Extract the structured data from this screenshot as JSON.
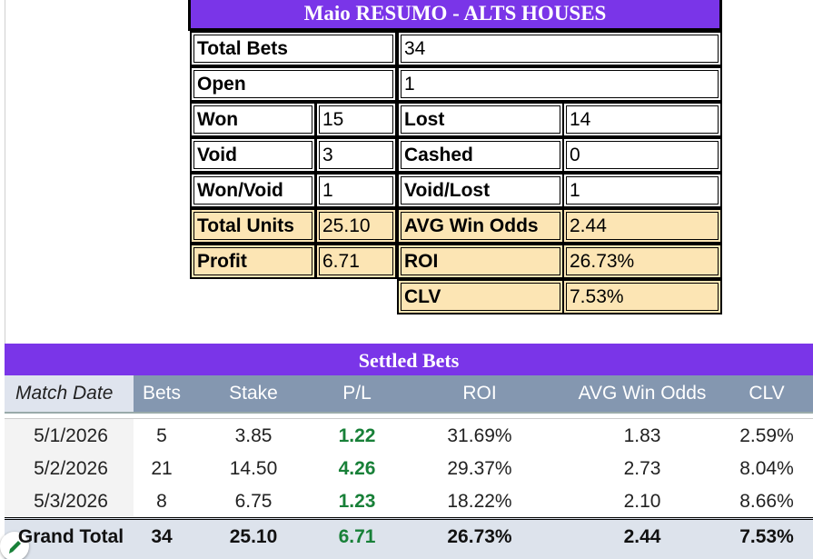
{
  "summary": {
    "title": "Maio RESUMO - ALTS HOUSES",
    "rows": [
      [
        "Total Bets",
        "34"
      ],
      [
        "Open",
        "1"
      ],
      [
        "Won",
        "15",
        "Lost",
        "14"
      ],
      [
        "Void",
        "3",
        "Cashed",
        "0"
      ],
      [
        "Won/Void",
        "1",
        "Void/Lost",
        "1"
      ],
      [
        "Total Units",
        "25.10",
        "AVG Win Odds",
        "2.44"
      ],
      [
        "Profit",
        "6.71",
        "ROI",
        "26.73%"
      ],
      [
        "CLV",
        "7.53%"
      ]
    ]
  },
  "settled": {
    "title": "Settled Bets",
    "headers": [
      "Match Date",
      "Bets",
      "Stake",
      "P/L",
      "ROI",
      "AVG Win Odds",
      "CLV"
    ],
    "rows": [
      [
        "5/1/2026",
        "5",
        "3.85",
        "1.22",
        "31.69%",
        "1.83",
        "2.59%"
      ],
      [
        "5/2/2026",
        "21",
        "14.50",
        "4.26",
        "29.37%",
        "2.73",
        "8.04%"
      ],
      [
        "5/3/2026",
        "8",
        "6.75",
        "1.23",
        "18.22%",
        "2.10",
        "8.66%"
      ]
    ],
    "total": [
      "Grand Total",
      "34",
      "25.10",
      "6.71",
      "26.73%",
      "2.44",
      "7.53%"
    ]
  }
}
